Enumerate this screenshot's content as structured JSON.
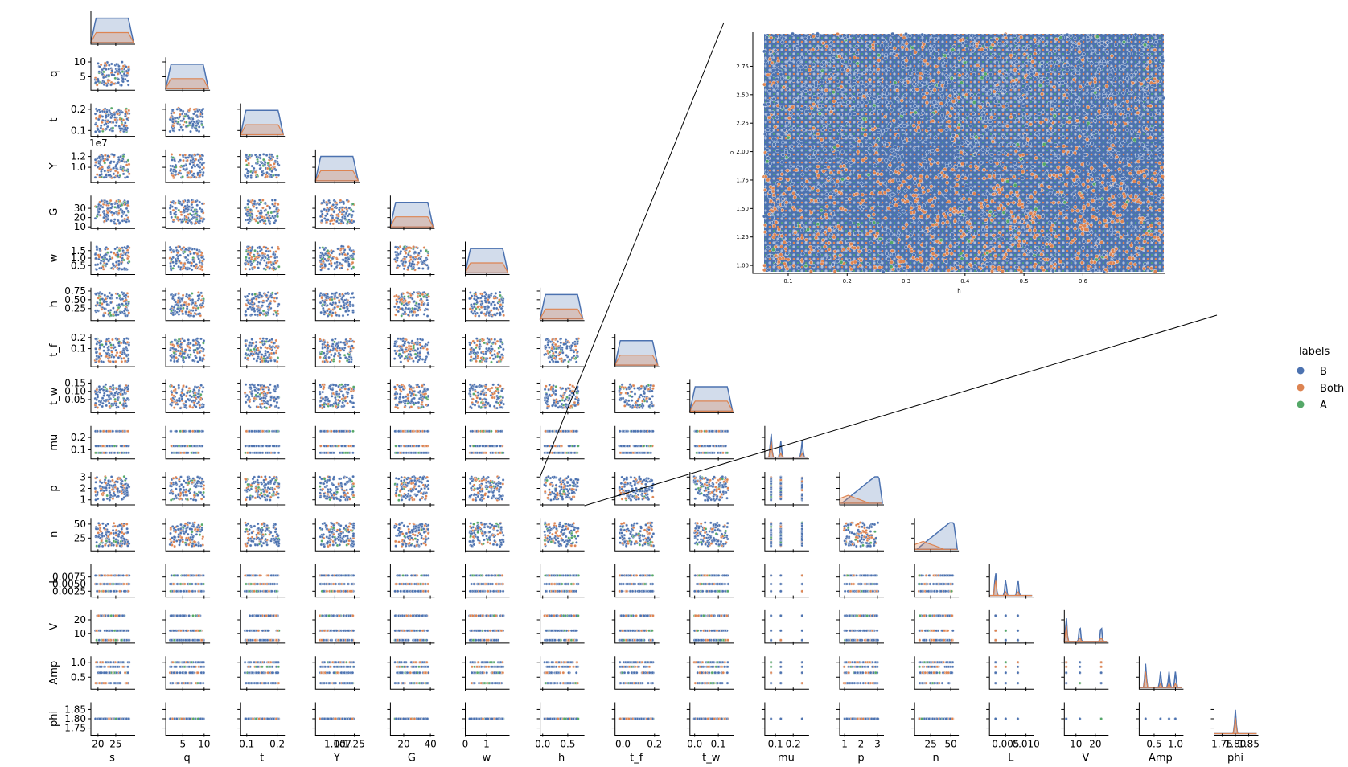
{
  "chart_data": {
    "type": "scatter",
    "kind": "pairplot-corner",
    "variables": [
      "s",
      "q",
      "t",
      "Y",
      "G",
      "w",
      "h",
      "t_f",
      "t_w",
      "mu",
      "p",
      "n",
      "L",
      "V",
      "Amp",
      "phi"
    ],
    "x_labels": [
      "s",
      "q",
      "t",
      "Y",
      "G",
      "w",
      "h",
      "t_f",
      "t_w",
      "mu",
      "p",
      "n",
      "L",
      "V",
      "Amp",
      "phi"
    ],
    "y_labels": [
      "",
      "q",
      "t",
      "Y",
      "G",
      "w",
      "h",
      "t_f",
      "t_w",
      "mu",
      "p",
      "n",
      "L",
      "V",
      "Amp",
      "phi"
    ],
    "offset_text": "1e7",
    "y_ticks": {
      "q": [
        "5",
        "10"
      ],
      "t": [
        "0.1",
        "0.2"
      ],
      "Y": [
        "1.0",
        "1.2"
      ],
      "G": [
        "10",
        "20",
        "30"
      ],
      "w": [
        "0.5",
        "1.0",
        "1.5"
      ],
      "h": [
        "0.25",
        "0.50",
        "0.75"
      ],
      "t_f": [
        "0.1",
        "0.2"
      ],
      "t_w": [
        "0.05",
        "0.10",
        "0.15"
      ],
      "mu": [
        "0.1",
        "0.2"
      ],
      "p": [
        "1",
        "2",
        "3"
      ],
      "n": [
        "25",
        "50"
      ],
      "L": [
        "0.0025",
        "0.0050",
        "0.0075"
      ],
      "V": [
        "10",
        "20"
      ],
      "Amp": [
        "0.5",
        "1.0"
      ],
      "phi": [
        "1.75",
        "1.80",
        "1.85"
      ]
    },
    "x_ticks": {
      "s": [
        "20",
        "25"
      ],
      "q": [
        "5",
        "10"
      ],
      "t": [
        "0.1",
        "0.2"
      ],
      "Y": [
        "1.00",
        "1.25"
      ],
      "G": [
        "20",
        "40"
      ],
      "w": [
        "0",
        "1"
      ],
      "h": [
        "0.0",
        "0.5"
      ],
      "t_f": [
        "0.0",
        "0.2"
      ],
      "t_w": [
        "0.0",
        "0.1"
      ],
      "mu": [
        "0.1",
        "0.2"
      ],
      "p": [
        "1",
        "2",
        "3"
      ],
      "n": [
        "25",
        "50"
      ],
      "L": [
        "0.005",
        "0.010"
      ],
      "V": [
        "10",
        "20"
      ],
      "Amp": [
        "0.5",
        "1.0"
      ],
      "phi": [
        "1.75",
        "1.80",
        "1.85"
      ]
    },
    "ranges": {
      "s": [
        18,
        30
      ],
      "q": [
        1,
        11
      ],
      "t": [
        0.08,
        0.22
      ],
      "Y": [
        0.75,
        1.3
      ],
      "G": [
        10,
        42
      ],
      "w": [
        0,
        2.0
      ],
      "h": [
        -0.05,
        0.8
      ],
      "t_f": [
        -0.05,
        0.22
      ],
      "t_w": [
        -0.02,
        0.16
      ],
      "mu": [
        0.04,
        0.28
      ],
      "p": [
        0.7,
        3.3
      ],
      "n": [
        5,
        58
      ],
      "L": [
        0.001,
        0.0115
      ],
      "V": [
        4,
        26
      ],
      "Amp": [
        0.15,
        1.15
      ],
      "phi": [
        1.72,
        1.88
      ]
    },
    "discrete_values": {
      "mu": [
        0.075,
        0.13,
        0.25
      ],
      "L": [
        0.0025,
        0.005,
        0.008
      ],
      "V": [
        5,
        12,
        23
      ],
      "Amp": [
        0.3,
        0.65,
        0.85,
        1.0
      ],
      "phi": [
        1.8
      ]
    },
    "series": [
      {
        "name": "B",
        "color": "#4c72b0"
      },
      {
        "name": "Both",
        "color": "#dd8452"
      },
      {
        "name": "A",
        "color": "#55a868"
      }
    ],
    "legend": {
      "title": "labels",
      "entries": [
        "B",
        "Both",
        "A"
      ],
      "placement": "right"
    },
    "inset": {
      "source_panel": "h vs p",
      "xlabel": "h",
      "ylabel": "p",
      "x_ticks": [
        "0.1",
        "0.2",
        "0.3",
        "0.4",
        "0.5",
        "0.6"
      ],
      "y_ticks": [
        "1.00",
        "1.25",
        "1.50",
        "1.75",
        "2.00",
        "2.25",
        "2.50",
        "2.75"
      ],
      "xlim": [
        0.04,
        0.74
      ],
      "ylim": [
        0.93,
        3.05
      ]
    }
  }
}
